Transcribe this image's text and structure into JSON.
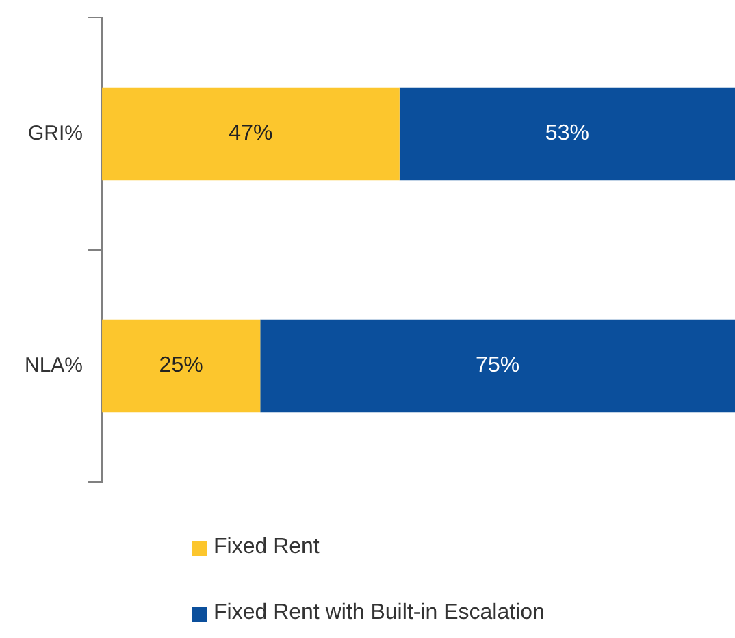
{
  "chart_data": {
    "type": "bar",
    "orientation": "horizontal",
    "stacked": true,
    "categories": [
      "GRI%",
      "NLA%"
    ],
    "series": [
      {
        "name": "Fixed Rent",
        "color": "#fcc62d",
        "values": [
          47,
          25
        ],
        "value_labels": [
          "47%",
          "25%"
        ]
      },
      {
        "name": "Fixed Rent with Built-in Escalation",
        "color": "#0b4f9c",
        "values": [
          53,
          75
        ],
        "value_labels": [
          "53%",
          "75%"
        ]
      }
    ],
    "xlim": [
      0,
      100
    ],
    "tick_labels": "y",
    "legend": "bottom"
  }
}
